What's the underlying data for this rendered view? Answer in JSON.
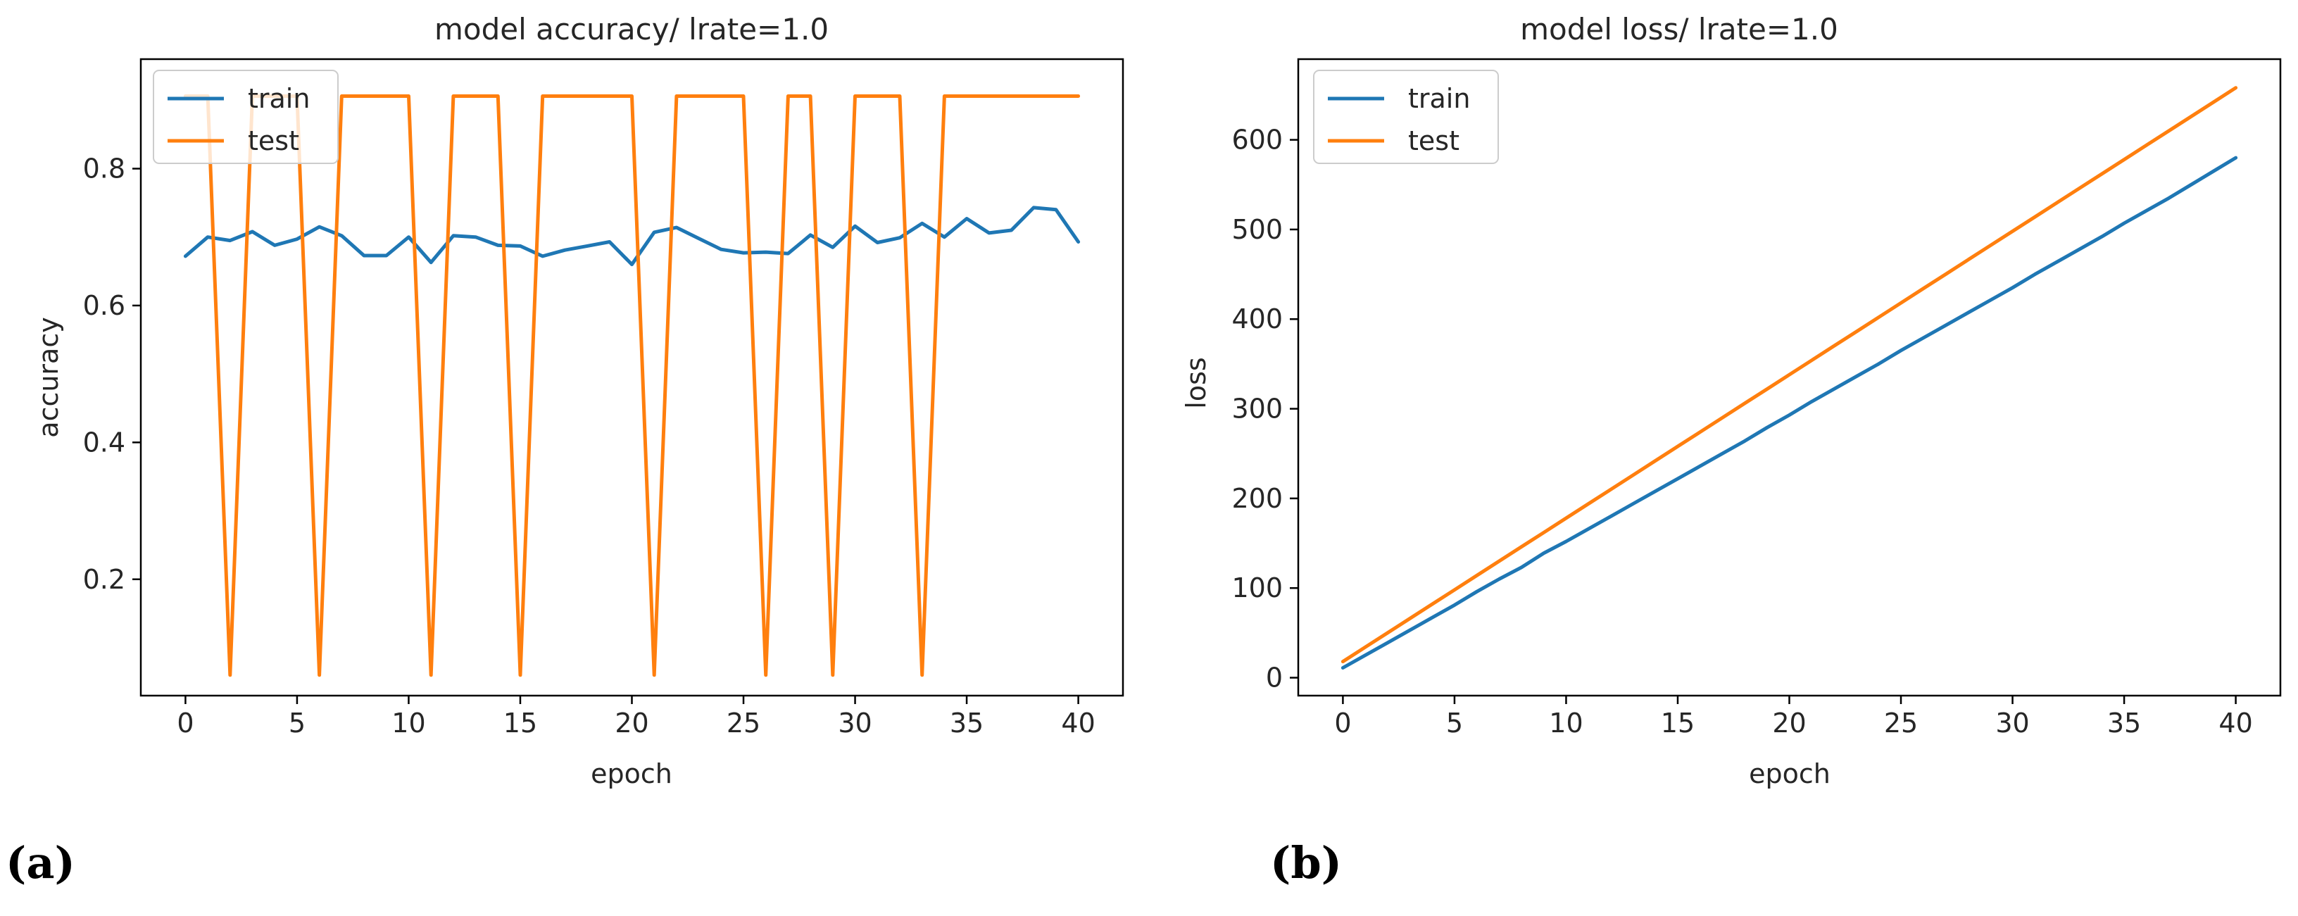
{
  "chart_data": [
    {
      "type": "line",
      "panel_label": "(a)",
      "title": "model accuracy/ lrate=1.0",
      "xlabel": "epoch",
      "ylabel": "accuracy",
      "xlim": [
        -2,
        42
      ],
      "ylim": [
        0.03,
        0.96
      ],
      "xticks": [
        0,
        5,
        10,
        15,
        20,
        25,
        30,
        35,
        40
      ],
      "xtick_labels": [
        "0",
        "5",
        "10",
        "15",
        "20",
        "25",
        "30",
        "35",
        "40"
      ],
      "yticks": [
        0.2,
        0.4,
        0.6,
        0.8
      ],
      "ytick_labels": [
        "0.2",
        "0.4",
        "0.6",
        "0.8"
      ],
      "legend_position": "top-left",
      "x": [
        0,
        1,
        2,
        3,
        4,
        5,
        6,
        7,
        8,
        9,
        10,
        11,
        12,
        13,
        14,
        15,
        16,
        17,
        18,
        19,
        20,
        21,
        22,
        23,
        24,
        25,
        26,
        27,
        28,
        29,
        30,
        31,
        32,
        33,
        34,
        35,
        36,
        37,
        38,
        39,
        40
      ],
      "series": [
        {
          "name": "train",
          "color": "#1f77b4",
          "values": [
            0.672,
            0.7,
            0.695,
            0.708,
            0.688,
            0.697,
            0.715,
            0.702,
            0.673,
            0.673,
            0.7,
            0.663,
            0.702,
            0.7,
            0.688,
            0.687,
            0.672,
            0.681,
            0.687,
            0.693,
            0.66,
            0.707,
            0.714,
            0.698,
            0.682,
            0.677,
            0.678,
            0.676,
            0.703,
            0.685,
            0.716,
            0.692,
            0.699,
            0.72,
            0.7,
            0.727,
            0.706,
            0.71,
            0.743,
            0.74,
            0.693
          ]
        },
        {
          "name": "test",
          "color": "#ff7f0e",
          "values": [
            0.906,
            0.906,
            0.06,
            0.906,
            0.906,
            0.906,
            0.06,
            0.906,
            0.906,
            0.906,
            0.906,
            0.06,
            0.906,
            0.906,
            0.906,
            0.06,
            0.906,
            0.906,
            0.906,
            0.906,
            0.906,
            0.06,
            0.906,
            0.906,
            0.906,
            0.906,
            0.06,
            0.906,
            0.906,
            0.06,
            0.906,
            0.906,
            0.906,
            0.06,
            0.906,
            0.906,
            0.906,
            0.906,
            0.906,
            0.906,
            0.906
          ]
        }
      ]
    },
    {
      "type": "line",
      "panel_label": "(b)",
      "title": "model loss/ lrate=1.0",
      "xlabel": "epoch",
      "ylabel": "loss",
      "xlim": [
        -2,
        42
      ],
      "ylim": [
        -20,
        690
      ],
      "xticks": [
        0,
        5,
        10,
        15,
        20,
        25,
        30,
        35,
        40
      ],
      "xtick_labels": [
        "0",
        "5",
        "10",
        "15",
        "20",
        "25",
        "30",
        "35",
        "40"
      ],
      "yticks": [
        0,
        100,
        200,
        300,
        400,
        500,
        600
      ],
      "ytick_labels": [
        "0",
        "100",
        "200",
        "300",
        "400",
        "500",
        "600"
      ],
      "legend_position": "top-left",
      "x": [
        0,
        1,
        2,
        3,
        4,
        5,
        6,
        7,
        8,
        9,
        10,
        11,
        12,
        13,
        14,
        15,
        16,
        17,
        18,
        19,
        20,
        21,
        22,
        23,
        24,
        25,
        26,
        27,
        28,
        29,
        30,
        31,
        32,
        33,
        34,
        35,
        36,
        37,
        38,
        39,
        40
      ],
      "series": [
        {
          "name": "train",
          "color": "#1f77b4",
          "values": [
            11,
            25,
            39,
            53,
            67,
            81,
            96,
            110,
            123,
            139,
            152,
            166,
            180,
            194,
            208,
            222,
            236,
            250,
            264,
            279,
            293,
            308,
            322,
            336,
            350,
            365,
            379,
            393,
            407,
            421,
            435,
            450,
            464,
            478,
            492,
            507,
            521,
            535,
            550,
            565,
            580
          ]
        },
        {
          "name": "test",
          "color": "#ff7f0e",
          "values": [
            18,
            34,
            50,
            66,
            82,
            98,
            114,
            130,
            146,
            162,
            178,
            194,
            210,
            226,
            242,
            258,
            274,
            290,
            306,
            322,
            338,
            354,
            370,
            386,
            402,
            418,
            434,
            450,
            466,
            482,
            498,
            514,
            530,
            546,
            562,
            578,
            594,
            610,
            626,
            642,
            658
          ]
        }
      ]
    }
  ]
}
